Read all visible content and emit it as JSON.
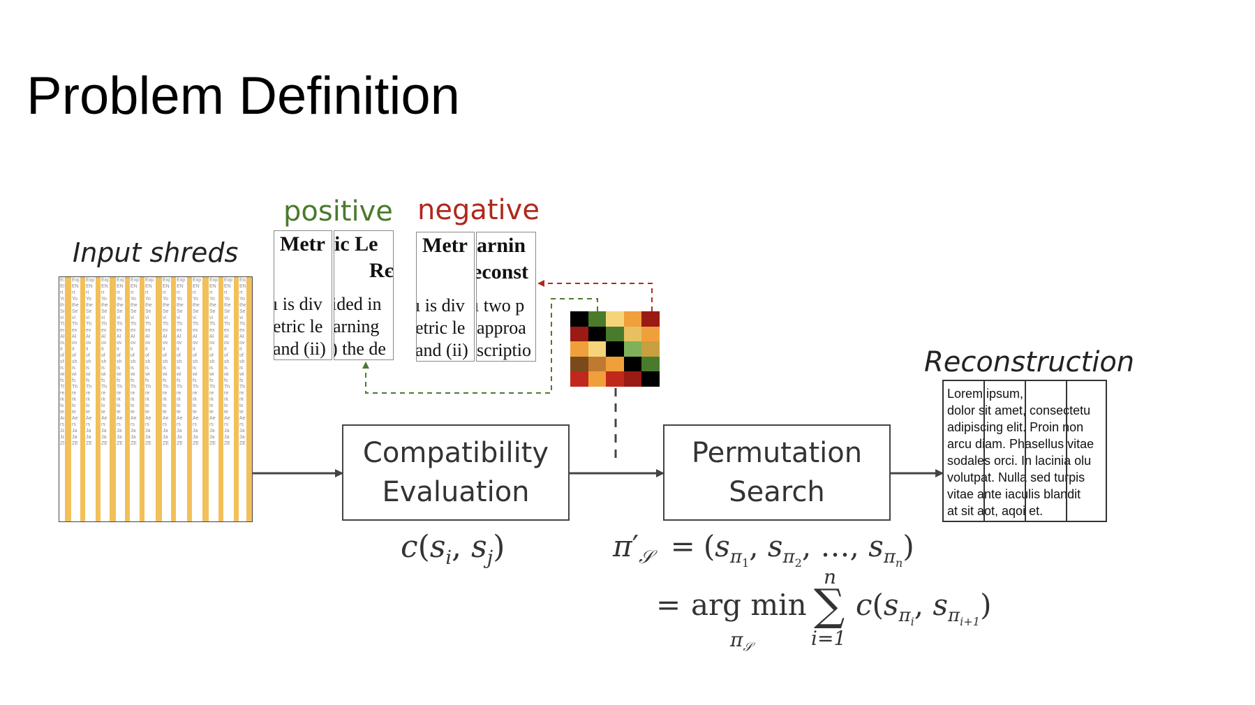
{
  "slide": {
    "title": "Problem Definition"
  },
  "labels": {
    "input_shreds": "Input shreds",
    "positive": "positive",
    "negative": "negative",
    "reconstruction": "Reconstruction"
  },
  "colors": {
    "positive": "#4a7a2c",
    "negative": "#b0281c",
    "shred_yellow": "#f2c05a",
    "arrow": "#444444"
  },
  "boxes": {
    "compat_line1": "Compatibility",
    "compat_line2": "Evaluation",
    "perm_line1": "Permutation",
    "perm_line2": "Search"
  },
  "positive_pair": {
    "left": {
      "bold1": "Metr",
      "line1": "ı is div",
      "line2": "etric le",
      "line3": "and (ii)"
    },
    "right": {
      "bold1": "ic Le",
      "bold2": "Rє",
      "line1": "ided in",
      "line2": "arning",
      "line3": ") the de"
    }
  },
  "negative_pair": {
    "left": {
      "bold1": "Metr",
      "line1": "ı is div",
      "line2": "etric le",
      "line3": "and (ii)"
    },
    "right": {
      "bold1": "arnin",
      "bold2": "econst",
      "line1": "ı two p",
      "line2": "approa",
      "line3": "scriptio"
    }
  },
  "compat_matrix": [
    [
      "#000000",
      "#4a7a2c",
      "#f6d57a",
      "#f0a03a",
      "#9a1a14"
    ],
    [
      "#9a1a14",
      "#000000",
      "#4a7a2c",
      "#e8c060",
      "#f0a03a"
    ],
    [
      "#f0a03a",
      "#f6d57a",
      "#000000",
      "#7fb05a",
      "#c8a040"
    ],
    [
      "#7a4a1a",
      "#c07a30",
      "#f0a03a",
      "#000000",
      "#4a7a2c"
    ],
    [
      "#c0281c",
      "#f0a03a",
      "#c0281c",
      "#9a1a14",
      "#000000"
    ]
  ],
  "reconstruction_text": "Lorem ipsum,\ndolor sit amet, consectetu\nadipiscing elit. Proin non\narcu diam. Phasellus vitae\nsodales orci. In lacinia olu\nvolutpat. Nulla sed turpis\nvitae ante iaculis blandit\nat sit aot, aqoi et.",
  "formulas": {
    "compat_c": "c",
    "compat_s": "s",
    "compat_i": "i",
    "compat_j": "j",
    "pi": "π",
    "prime": "′",
    "script_s": "𝒮",
    "eq": "=",
    "ellipsis": "…",
    "n": "n",
    "argmin": "arg min",
    "i_eq_1": "i=1",
    "i_plus_1": "i+1",
    "sum": "∑",
    "one": "1",
    "two": "2"
  },
  "shred_text_col": "Exp\nEN\nrt\nYo\nthe\nSe\nvi\nTh\nex\nAl\nov\nit\nof\nsh\nis\nwi\nfs\nTh\nre\nrk\nlo\nte\nAe\nrs\nJa\nJa\nZE"
}
